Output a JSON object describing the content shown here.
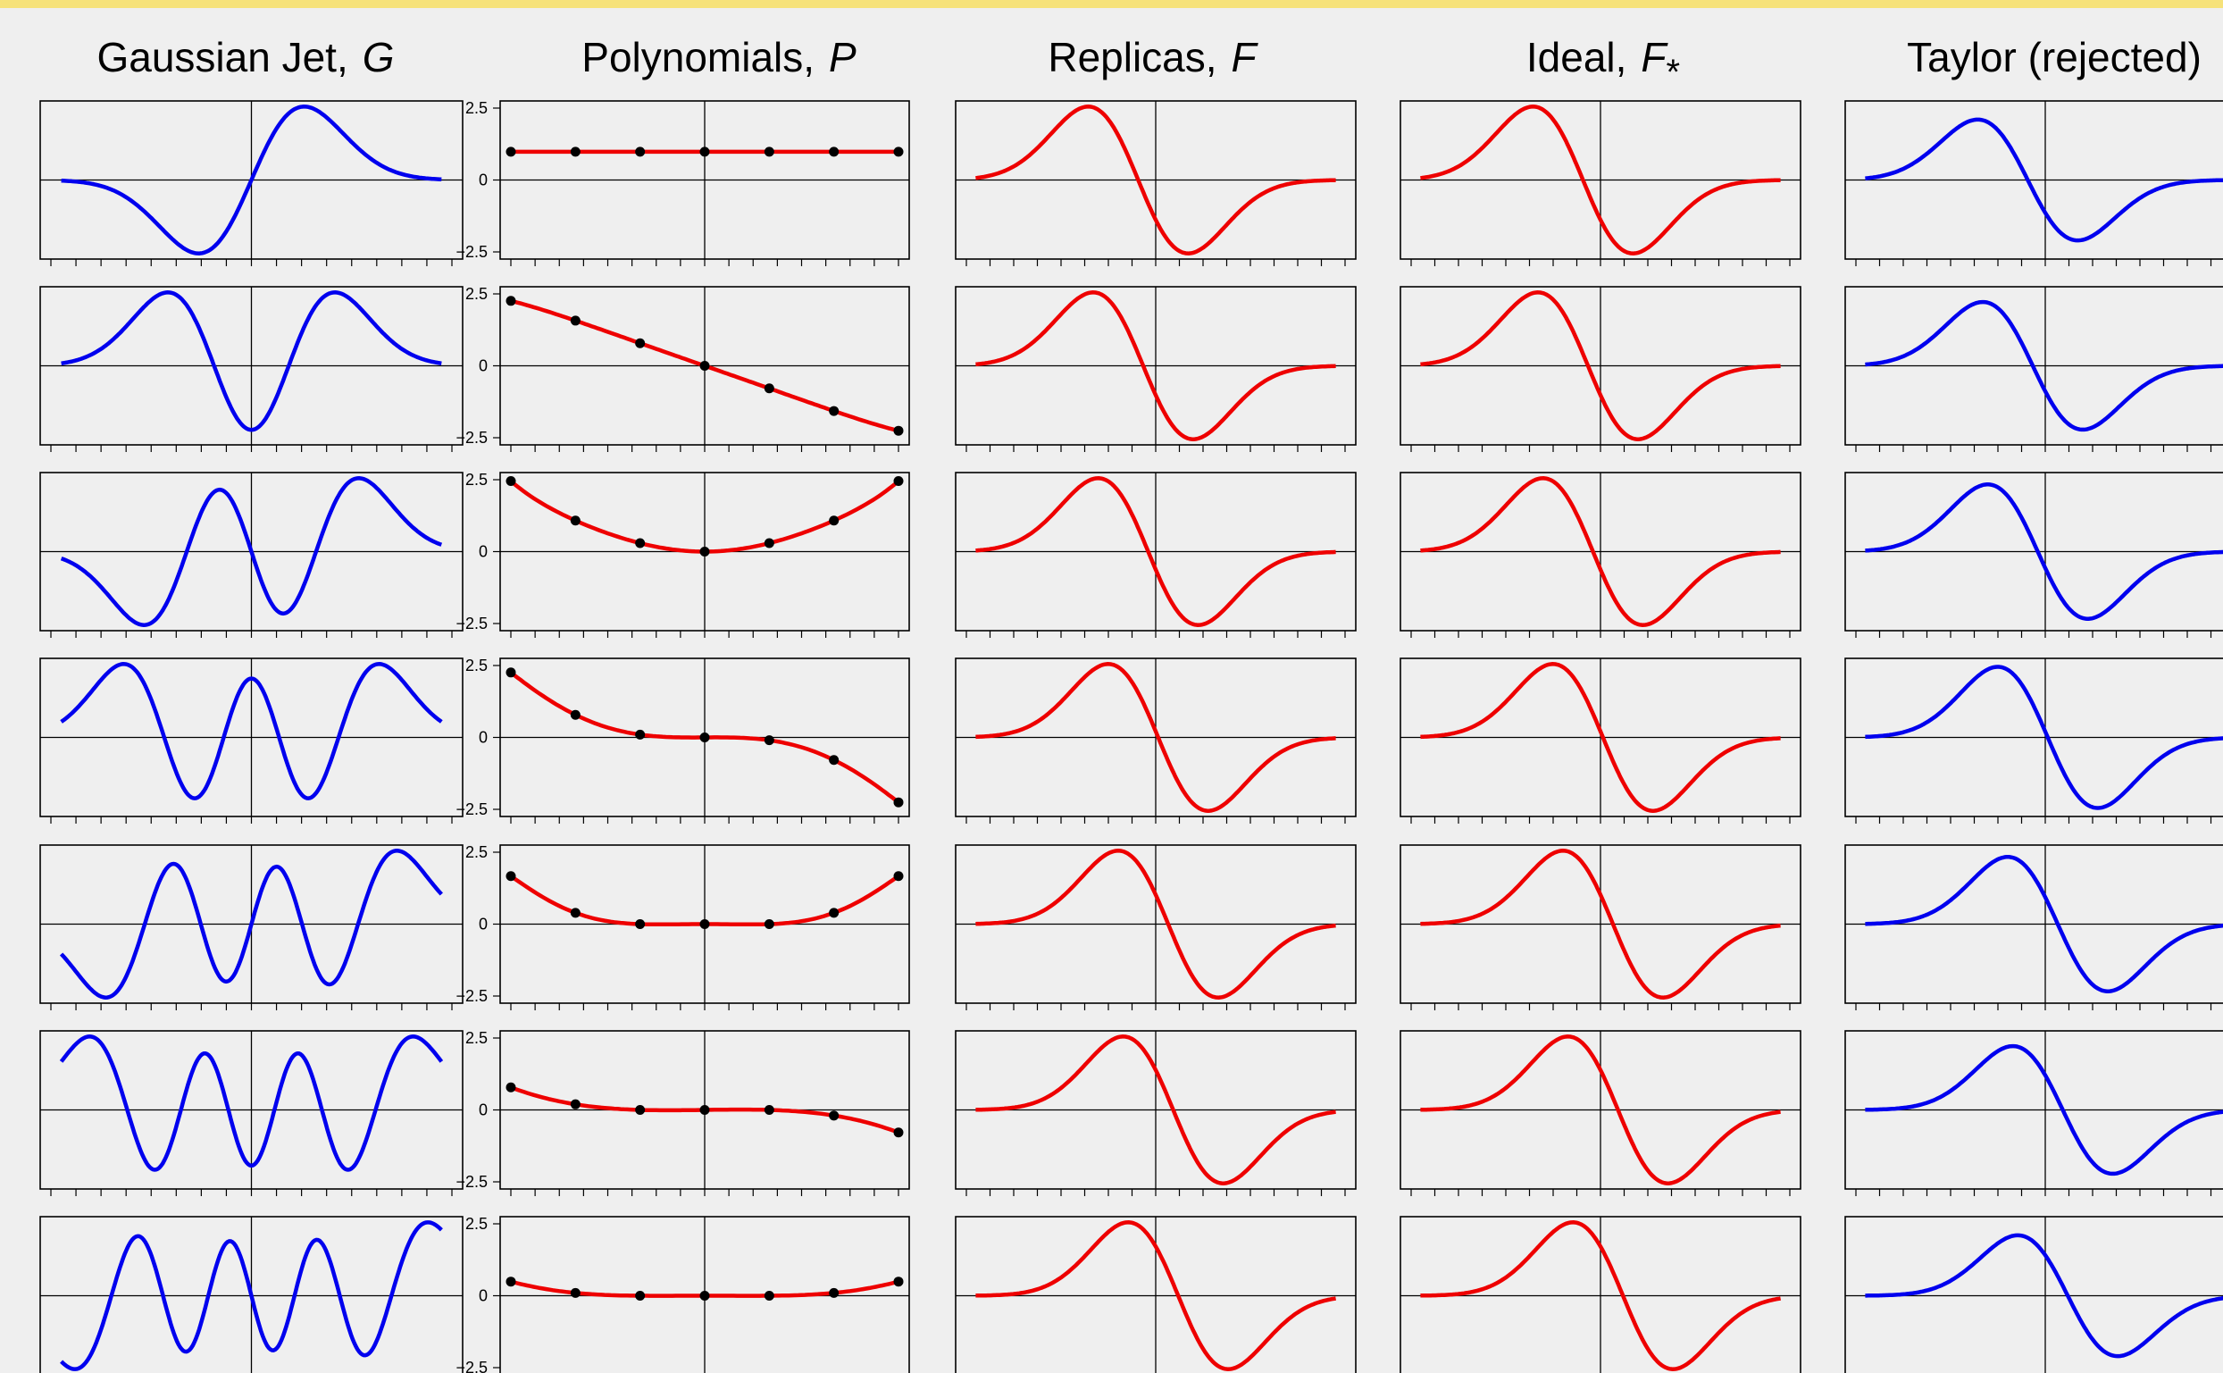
{
  "colors": {
    "accent_bar": "#f6e27a",
    "gaussian": "#0000ee",
    "replica": "#ee0000",
    "point": "#000000",
    "frame": "#000000",
    "background": "#efefef"
  },
  "columns": [
    {
      "name": "Gaussian Jet,",
      "symbol": "G"
    },
    {
      "name": "Polynomials,",
      "symbol": "P"
    },
    {
      "name": "Replicas,",
      "symbol": "F"
    },
    {
      "name": "Ideal,",
      "symbol": "F",
      "subscript": "*"
    },
    {
      "name": "Taylor  (rejected)",
      "symbol": ""
    }
  ],
  "y_tick_labels": [
    "2.5",
    "0",
    "−2.5"
  ],
  "chart_data": {
    "type": "line",
    "rows": 7,
    "x_range": [
      -4,
      4
    ],
    "ylim": [
      -2.8,
      2.8
    ],
    "sample_x": [
      -3,
      -2,
      -1,
      0,
      1,
      2,
      3
    ],
    "gaussian_jet": {
      "description_values": "Hermite functions of order 1..7",
      "orders": [
        1,
        2,
        3,
        4,
        5,
        6,
        7
      ],
      "amplitude": [
        2.6,
        2.6,
        2.6,
        2.6,
        2.6,
        2.6,
        2.6
      ]
    },
    "polynomials": [
      {
        "row": 1,
        "points": [
          1,
          1,
          1,
          1,
          1,
          1,
          1
        ]
      },
      {
        "row": 2,
        "points": [
          2.3,
          1.6,
          0.8,
          0,
          -0.8,
          -1.6,
          -2.3
        ]
      },
      {
        "row": 3,
        "points": [
          2.5,
          1.1,
          0.3,
          0,
          0.3,
          1.1,
          2.5
        ]
      },
      {
        "row": 4,
        "points": [
          2.3,
          0.8,
          0.1,
          0,
          -0.1,
          -0.8,
          -2.3
        ]
      },
      {
        "row": 5,
        "points": [
          1.7,
          0.4,
          0,
          0,
          0,
          0.4,
          1.7
        ]
      },
      {
        "row": 6,
        "points": [
          0.8,
          0.2,
          0,
          0,
          0,
          -0.2,
          -0.8
        ]
      },
      {
        "row": 7,
        "points": [
          0.5,
          0.1,
          0,
          0,
          0,
          0.1,
          0.5
        ]
      }
    ],
    "replicas_shift": [
      -0.4,
      -0.3,
      -0.2,
      0,
      0.2,
      0.3,
      0.4
    ],
    "ideal_shift": [
      -0.4,
      -0.3,
      -0.2,
      0,
      0.2,
      0.3,
      0.4
    ],
    "taylor_shift": [
      -0.4,
      -0.3,
      -0.2,
      0,
      0.2,
      0.3,
      0.4
    ]
  }
}
